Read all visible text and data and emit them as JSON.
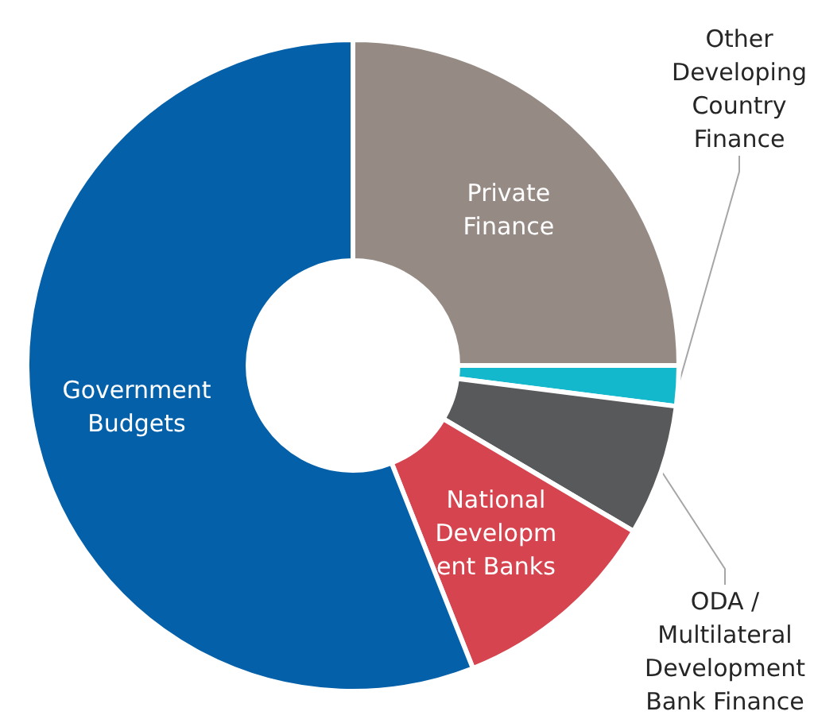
{
  "chart_data": {
    "type": "donut",
    "categories": [
      "Private\nFinance",
      "Other\nDeveloping\nCountry\nFinance",
      "ODA /\nMultilateral\nDevelopment\nBank Finance",
      "National\nDevelopm\nent Banks",
      "Government\nBudgets"
    ],
    "values": [
      25,
      2,
      6.5,
      10.5,
      56
    ],
    "colors": [
      "#968b84",
      "#14b8cc",
      "#58595b",
      "#d6444f",
      "#0460a9"
    ],
    "legend": false
  }
}
